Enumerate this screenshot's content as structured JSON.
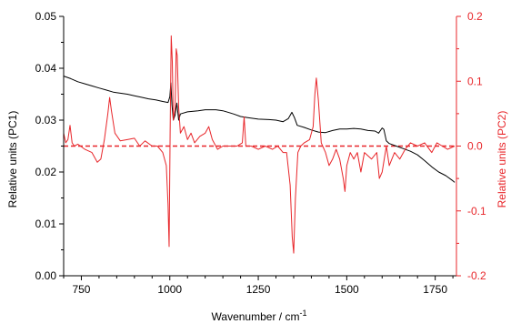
{
  "chart_data": {
    "type": "line",
    "xlabel": "Wavenumber / cm",
    "xlabel_superscript": "-1",
    "ylabel_left": "Relative units  (PC1)",
    "ylabel_right": "Relative units  (PC2)",
    "xlim": [
      700,
      1810
    ],
    "ylim_left": [
      0,
      0.05
    ],
    "ylim_right": [
      -0.2,
      0.2
    ],
    "x_ticks": [
      "750",
      "1000",
      "1250",
      "1500",
      "1750"
    ],
    "y_left_ticks": [
      "0.00",
      "0.01",
      "0.02",
      "0.03",
      "0.04",
      "0.05"
    ],
    "y_right_ticks": [
      "-0.2",
      "-0.1",
      "0.0",
      "0.1",
      "0.2"
    ],
    "grid": false,
    "zero_line": {
      "axis": "right",
      "value": 0.0,
      "style": "dashed"
    },
    "series": [
      {
        "axis": "left",
        "color": "#000000",
        "points": [
          [
            700,
            0.0385
          ],
          [
            720,
            0.038
          ],
          [
            740,
            0.0374
          ],
          [
            760,
            0.037
          ],
          [
            780,
            0.0366
          ],
          [
            800,
            0.0362
          ],
          [
            820,
            0.0358
          ],
          [
            840,
            0.0354
          ],
          [
            860,
            0.0352
          ],
          [
            880,
            0.035
          ],
          [
            900,
            0.0347
          ],
          [
            920,
            0.0344
          ],
          [
            940,
            0.0341
          ],
          [
            960,
            0.0339
          ],
          [
            980,
            0.0336
          ],
          [
            995,
            0.0334
          ],
          [
            1000,
            0.0345
          ],
          [
            1003,
            0.0372
          ],
          [
            1006,
            0.033
          ],
          [
            1010,
            0.03
          ],
          [
            1015,
            0.031
          ],
          [
            1020,
            0.0333
          ],
          [
            1025,
            0.03
          ],
          [
            1030,
            0.0312
          ],
          [
            1050,
            0.0316
          ],
          [
            1080,
            0.0318
          ],
          [
            1100,
            0.032
          ],
          [
            1130,
            0.032
          ],
          [
            1150,
            0.0318
          ],
          [
            1180,
            0.0312
          ],
          [
            1200,
            0.0307
          ],
          [
            1220,
            0.0305
          ],
          [
            1250,
            0.0302
          ],
          [
            1280,
            0.0301
          ],
          [
            1300,
            0.03
          ],
          [
            1320,
            0.0297
          ],
          [
            1335,
            0.0303
          ],
          [
            1345,
            0.0315
          ],
          [
            1352,
            0.0305
          ],
          [
            1360,
            0.029
          ],
          [
            1380,
            0.0286
          ],
          [
            1400,
            0.0281
          ],
          [
            1420,
            0.0277
          ],
          [
            1440,
            0.0276
          ],
          [
            1460,
            0.028
          ],
          [
            1480,
            0.0283
          ],
          [
            1500,
            0.0283
          ],
          [
            1520,
            0.0284
          ],
          [
            1540,
            0.0283
          ],
          [
            1560,
            0.028
          ],
          [
            1580,
            0.0279
          ],
          [
            1590,
            0.0275
          ],
          [
            1600,
            0.0285
          ],
          [
            1605,
            0.0282
          ],
          [
            1612,
            0.026
          ],
          [
            1620,
            0.0255
          ],
          [
            1640,
            0.025
          ],
          [
            1660,
            0.0245
          ],
          [
            1680,
            0.024
          ],
          [
            1700,
            0.0233
          ],
          [
            1720,
            0.0222
          ],
          [
            1740,
            0.021
          ],
          [
            1760,
            0.02
          ],
          [
            1780,
            0.0193
          ],
          [
            1800,
            0.0183
          ],
          [
            1805,
            0.018
          ]
        ]
      },
      {
        "axis": "right",
        "color": "#e8262a",
        "points": [
          [
            700,
            0.02
          ],
          [
            706,
            0.005
          ],
          [
            712,
            0.01
          ],
          [
            718,
            0.032
          ],
          [
            724,
            0.005
          ],
          [
            730,
            0.0
          ],
          [
            740,
            0.003
          ],
          [
            760,
            -0.005
          ],
          [
            780,
            -0.01
          ],
          [
            795,
            -0.025
          ],
          [
            805,
            -0.02
          ],
          [
            815,
            0.01
          ],
          [
            825,
            0.05
          ],
          [
            830,
            0.075
          ],
          [
            835,
            0.055
          ],
          [
            845,
            0.02
          ],
          [
            860,
            0.008
          ],
          [
            880,
            0.01
          ],
          [
            900,
            0.012
          ],
          [
            915,
            0.0
          ],
          [
            930,
            0.008
          ],
          [
            950,
            0.0
          ],
          [
            965,
            0.0
          ],
          [
            980,
            -0.01
          ],
          [
            990,
            -0.03
          ],
          [
            995,
            -0.09
          ],
          [
            998,
            -0.155
          ],
          [
            1001,
            0.02
          ],
          [
            1004,
            0.17
          ],
          [
            1007,
            0.13
          ],
          [
            1010,
            0.04
          ],
          [
            1015,
            0.06
          ],
          [
            1018,
            0.15
          ],
          [
            1021,
            0.14
          ],
          [
            1025,
            0.06
          ],
          [
            1030,
            0.02
          ],
          [
            1040,
            0.03
          ],
          [
            1050,
            0.01
          ],
          [
            1060,
            0.02
          ],
          [
            1070,
            0.005
          ],
          [
            1085,
            0.015
          ],
          [
            1100,
            0.02
          ],
          [
            1110,
            0.03
          ],
          [
            1120,
            0.01
          ],
          [
            1135,
            -0.005
          ],
          [
            1150,
            0.0
          ],
          [
            1170,
            0.0
          ],
          [
            1190,
            0.0
          ],
          [
            1205,
            0.005
          ],
          [
            1210,
            0.045
          ],
          [
            1215,
            0.0
          ],
          [
            1230,
            0.0
          ],
          [
            1250,
            -0.005
          ],
          [
            1270,
            0.0
          ],
          [
            1290,
            -0.005
          ],
          [
            1305,
            0.0
          ],
          [
            1320,
            -0.01
          ],
          [
            1330,
            -0.01
          ],
          [
            1340,
            -0.06
          ],
          [
            1346,
            -0.14
          ],
          [
            1350,
            -0.165
          ],
          [
            1355,
            -0.08
          ],
          [
            1362,
            -0.01
          ],
          [
            1370,
            0.0
          ],
          [
            1380,
            0.005
          ],
          [
            1395,
            0.01
          ],
          [
            1405,
            0.03
          ],
          [
            1410,
            0.08
          ],
          [
            1414,
            0.105
          ],
          [
            1420,
            0.07
          ],
          [
            1428,
            0.005
          ],
          [
            1440,
            -0.01
          ],
          [
            1450,
            -0.03
          ],
          [
            1460,
            -0.02
          ],
          [
            1470,
            -0.005
          ],
          [
            1480,
            -0.02
          ],
          [
            1490,
            -0.05
          ],
          [
            1495,
            -0.07
          ],
          [
            1500,
            -0.03
          ],
          [
            1510,
            -0.01
          ],
          [
            1520,
            -0.02
          ],
          [
            1530,
            -0.01
          ],
          [
            1540,
            -0.04
          ],
          [
            1550,
            -0.01
          ],
          [
            1570,
            -0.02
          ],
          [
            1585,
            -0.01
          ],
          [
            1592,
            -0.05
          ],
          [
            1600,
            -0.04
          ],
          [
            1612,
            0.0
          ],
          [
            1620,
            -0.03
          ],
          [
            1635,
            -0.01
          ],
          [
            1650,
            -0.02
          ],
          [
            1665,
            -0.005
          ],
          [
            1680,
            0.005
          ],
          [
            1700,
            0.0
          ],
          [
            1720,
            0.005
          ],
          [
            1740,
            -0.01
          ],
          [
            1755,
            0.005
          ],
          [
            1770,
            0.0
          ],
          [
            1785,
            -0.005
          ],
          [
            1805,
            0.0
          ]
        ]
      }
    ]
  }
}
